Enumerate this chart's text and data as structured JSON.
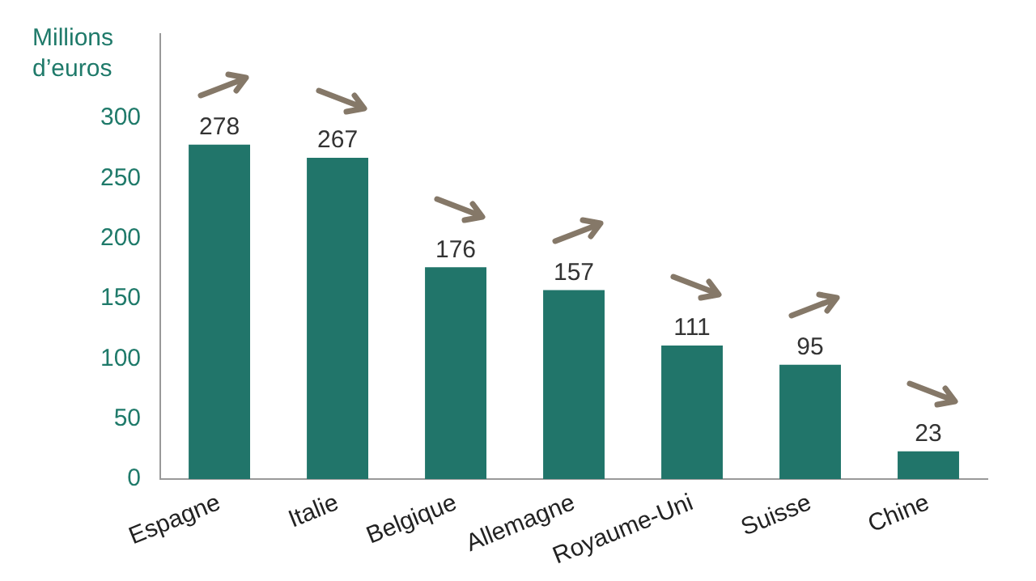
{
  "chart_data": {
    "type": "bar",
    "ylabel": "Millions d’euros",
    "categories": [
      "Espagne",
      "Italie",
      "Belgique",
      "Allemagne",
      "Royaume-Uni",
      "Suisse",
      "Chine"
    ],
    "values": [
      278,
      267,
      176,
      157,
      111,
      95,
      23
    ],
    "color": "#21756a",
    "ylim": [
      0,
      370
    ],
    "yticks": [
      0,
      50,
      100,
      150,
      200,
      250,
      300
    ],
    "grid": false,
    "legend": false,
    "data_labels": true
  }
}
